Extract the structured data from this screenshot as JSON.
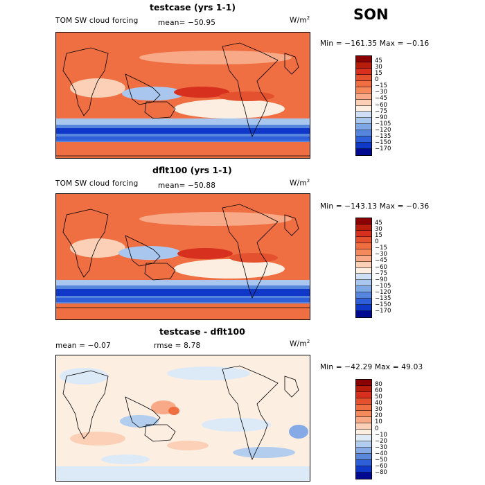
{
  "season": "SON",
  "units_base": "W/m",
  "units_exp": "2",
  "panels": [
    {
      "title": "testcase (yrs 1-1)",
      "subtitle": "TOM SW cloud forcing",
      "mean": "mean= −50.95",
      "minmax": "Min = −161.35 Max =  −0.16",
      "scale": "abs"
    },
    {
      "title": "dflt100 (yrs 1-1)",
      "subtitle": "TOM SW cloud forcing",
      "mean": "mean= −50.88",
      "minmax": "Min = −143.13 Max =  −0.36",
      "scale": "abs"
    },
    {
      "title": "testcase - dflt100",
      "mean": "mean =  −0.07",
      "rmse": "rmse =   8.78",
      "minmax": "Min = −42.29 Max =  49.03",
      "scale": "diff"
    }
  ],
  "colorbars": {
    "abs": {
      "labels": [
        "45",
        "30",
        "15",
        "0",
        "−15",
        "−30",
        "−45",
        "−60",
        "−75",
        "−90",
        "−105",
        "−120",
        "−135",
        "−150",
        "−170"
      ],
      "colors": [
        "#8b0000",
        "#b81c0a",
        "#d7301f",
        "#e4512e",
        "#ef6f42",
        "#f4895c",
        "#f8a988",
        "#fbd0b6",
        "#fdeee2",
        "#cfdff5",
        "#a8c6ee",
        "#7ea7e6",
        "#5585dd",
        "#2e5fd8",
        "#1038c8",
        "#000a90"
      ]
    },
    "diff": {
      "labels": [
        "80",
        "60",
        "50",
        "40",
        "30",
        "20",
        "10",
        "0",
        "−10",
        "−20",
        "−30",
        "−40",
        "−50",
        "−60",
        "−80"
      ],
      "colors": [
        "#8b0000",
        "#b81c0a",
        "#d7301f",
        "#e4512e",
        "#ef6f42",
        "#f4895c",
        "#f8a988",
        "#fbd0b6",
        "#fdeee2",
        "#dceaf8",
        "#b3cdef",
        "#86aae5",
        "#5a86dc",
        "#2e5fd8",
        "#1038c8",
        "#000a90"
      ]
    }
  },
  "chart_data": [
    {
      "type": "heatmap",
      "title": "testcase (yrs 1-1)",
      "subtitle": "TOM SW cloud forcing",
      "variable": "TOM SW cloud forcing",
      "units": "W/m2",
      "season": "SON",
      "mean": -50.95,
      "min": -161.35,
      "max": -0.16,
      "contour_levels": [
        -170,
        -150,
        -135,
        -120,
        -105,
        -90,
        -75,
        -60,
        -45,
        -30,
        -15,
        0,
        15,
        30,
        45
      ]
    },
    {
      "type": "heatmap",
      "title": "dflt100 (yrs 1-1)",
      "subtitle": "TOM SW cloud forcing",
      "variable": "TOM SW cloud forcing",
      "units": "W/m2",
      "season": "SON",
      "mean": -50.88,
      "min": -143.13,
      "max": -0.36,
      "contour_levels": [
        -170,
        -150,
        -135,
        -120,
        -105,
        -90,
        -75,
        -60,
        -45,
        -30,
        -15,
        0,
        15,
        30,
        45
      ]
    },
    {
      "type": "heatmap",
      "title": "testcase - dflt100",
      "units": "W/m2",
      "season": "SON",
      "mean": -0.07,
      "rmse": 8.78,
      "min": -42.29,
      "max": 49.03,
      "contour_levels": [
        -80,
        -60,
        -50,
        -40,
        -30,
        -20,
        -10,
        0,
        10,
        20,
        30,
        40,
        50,
        60,
        80
      ]
    }
  ]
}
